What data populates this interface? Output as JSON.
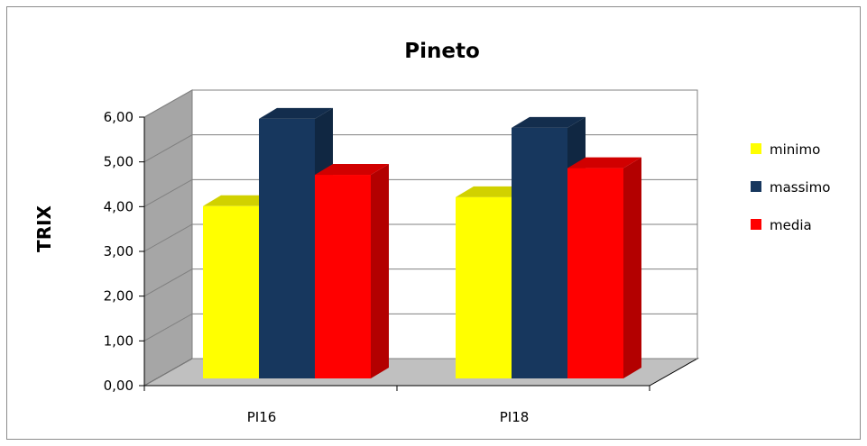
{
  "chart_data": {
    "type": "bar",
    "title": "Pineto",
    "xlabel": "",
    "ylabel": "TRIX",
    "categories": [
      "PI16",
      "PI18"
    ],
    "series": [
      {
        "name": "minimo",
        "color": "#ffff00",
        "values": [
          3.85,
          4.05
        ]
      },
      {
        "name": "massimo",
        "color": "#17375e",
        "values": [
          5.8,
          5.6
        ]
      },
      {
        "name": "media",
        "color": "#ff0000",
        "values": [
          4.55,
          4.7
        ]
      }
    ],
    "ylim": [
      0,
      6
    ],
    "yticks": [
      "0,00",
      "1,00",
      "2,00",
      "3,00",
      "4,00",
      "5,00",
      "6,00"
    ],
    "grid": true,
    "legend_position": "right",
    "style_3d": true,
    "colors": {
      "wall": "#ffffff",
      "side_wall": "#a6a6a6",
      "floor": "#c0c0c0",
      "gridline": "#808080"
    }
  }
}
